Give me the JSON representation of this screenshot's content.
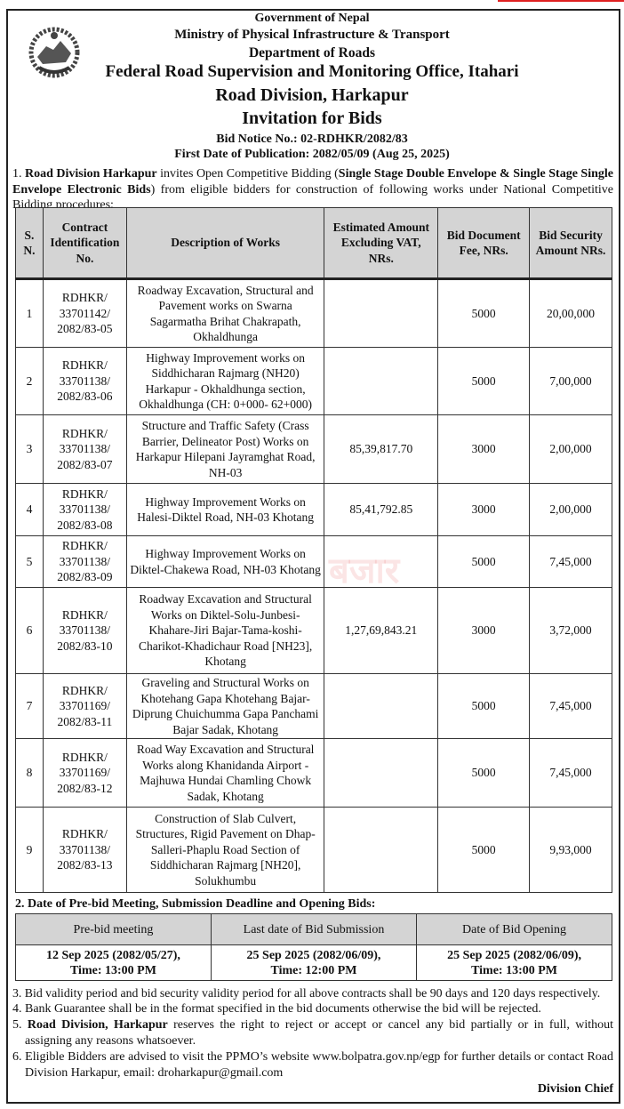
{
  "header": {
    "gov": "Government of Nepal",
    "ministry": "Ministry of Physical Infrastructure & Transport",
    "department": "Department of Roads",
    "office": "Federal Road Supervision and Monitoring Office, Itahari",
    "division": "Road Division, Harkapur",
    "title": "Invitation for Bids",
    "notice_label": "Bid Notice No.:",
    "notice_no": "02-RDHKR/2082/83",
    "pub_label": "First Date of Publication:",
    "pub_date": "2082/05/09 (Aug 25, 2025)"
  },
  "intro": {
    "num": "1.",
    "b1": "Road Division Harkapur",
    "t1": " invites Open Competitive Bidding (",
    "b2": "Single Stage Double Envelope & Single Stage Single Envelope Electronic Bids",
    "t2": ") from eligible bidders for construction of following works under National Competitive Bidding procedures:"
  },
  "table": {
    "headers": [
      "S. N.",
      "Contract Identification No.",
      "Description of Works",
      "Estimated Amount Excluding VAT, NRs.",
      "Bid Document Fee, NRs.",
      "Bid Security Amount NRs."
    ],
    "rows": [
      {
        "sn": "1",
        "id": "RDHKR/ 33701142/ 2082/83-05",
        "desc": "Roadway Excavation, Structural and Pavement works on Swarna Sagarmatha Brihat Chakrapath, Okhaldhunga",
        "est": "",
        "fee": "5000",
        "sec": "20,00,000"
      },
      {
        "sn": "2",
        "id": "RDHKR/ 33701138/ 2082/83-06",
        "desc": "Highway Improvement works on Siddhicharan Rajmarg (NH20) Harkapur - Okhaldhunga section, Okhaldhunga (CH: 0+000- 62+000)",
        "est": "",
        "fee": "5000",
        "sec": "7,00,000"
      },
      {
        "sn": "3",
        "id": "RDHKR/ 33701138/ 2082/83-07",
        "desc": "Structure and Traffic Safety (Crass Barrier, Delineator Post) Works on Harkapur Hilepani Jayramghat Road, NH-03",
        "est": "85,39,817.70",
        "fee": "3000",
        "sec": "2,00,000"
      },
      {
        "sn": "4",
        "id": "RDHKR/ 33701138/ 2082/83-08",
        "desc": "Highway Improvement Works on Halesi-Diktel Road, NH-03 Khotang",
        "est": "85,41,792.85",
        "fee": "3000",
        "sec": "2,00,000"
      },
      {
        "sn": "5",
        "id": "RDHKR/ 33701138/ 2082/83-09",
        "desc": "Highway Improvement Works on Diktel-Chakewa Road, NH-03 Khotang",
        "est": "",
        "fee": "5000",
        "sec": "7,45,000"
      },
      {
        "sn": "6",
        "id": "RDHKR/ 33701138/ 2082/83-10",
        "desc": "Roadway Excavation and Structural Works on Diktel-Solu-Junbesi-Khahare-Jiri Bajar-Tama-koshi-Charikot-Khadichaur Road [NH23], Khotang",
        "est": "1,27,69,843.21",
        "fee": "3000",
        "sec": "3,72,000"
      },
      {
        "sn": "7",
        "id": "RDHKR/ 33701169/ 2082/83-11",
        "desc": "Graveling and Structural Works on Khotehang Gapa Khotehang Bajar-Diprung Chuichumma Gapa Panchami Bajar Sadak, Khotang",
        "est": "",
        "fee": "5000",
        "sec": "7,45,000"
      },
      {
        "sn": "8",
        "id": "RDHKR/ 33701169/ 2082/83-12",
        "desc": "Road Way Excavation and Structural Works along Khanidanda Airport - Majhuwa Hundai Chamling Chowk Sadak, Khotang",
        "est": "",
        "fee": "5000",
        "sec": "7,45,000"
      },
      {
        "sn": "9",
        "id": "RDHKR/ 33701138/ 2082/83-13",
        "desc": "Construction of Slab Culvert, Structures, Rigid Pavement on Dhap-Salleri-Phaplu Road Section of Siddhicharan Rajmarg [NH20], Solukhumbu",
        "est": "",
        "fee": "5000",
        "sec": "9,93,000"
      }
    ]
  },
  "section2": {
    "title": "2. Date of Pre-bid Meeting, Submission Deadline and Opening Bids:",
    "headers": [
      "Pre-bid meeting",
      "Last date of Bid Submission",
      "Date of Bid Opening"
    ],
    "dates": [
      "12 Sep 2025 (2082/05/27),",
      "25 Sep 2025 (2082/06/09),",
      "25 Sep 2025 (2082/06/09),"
    ],
    "times": [
      "Time: 13:00 PM",
      "Time: 12:00 PM",
      "Time: 13:00 PM"
    ]
  },
  "notes": {
    "n3": "3. Bid validity period and bid security validity period for all above contracts shall be 90 days and 120 days respectively.",
    "n4": "4. Bank Guarantee shall be in the format specified in the bid documents otherwise the bid will be rejected.",
    "n5_num": "5. ",
    "n5_bold": "Road Division, Harkapur",
    "n5_text": " reserves the right to reject or accept or cancel any bid partially or in full, without assigning any reasons whatsoever.",
    "n6": "6. Eligible Bidders are advised to visit the PPMO’s website www.bolpatra.gov.np/egp for further details or contact Road Division Harkapur, email: droharkapur@gmail.com"
  },
  "signature": "Division Chief"
}
